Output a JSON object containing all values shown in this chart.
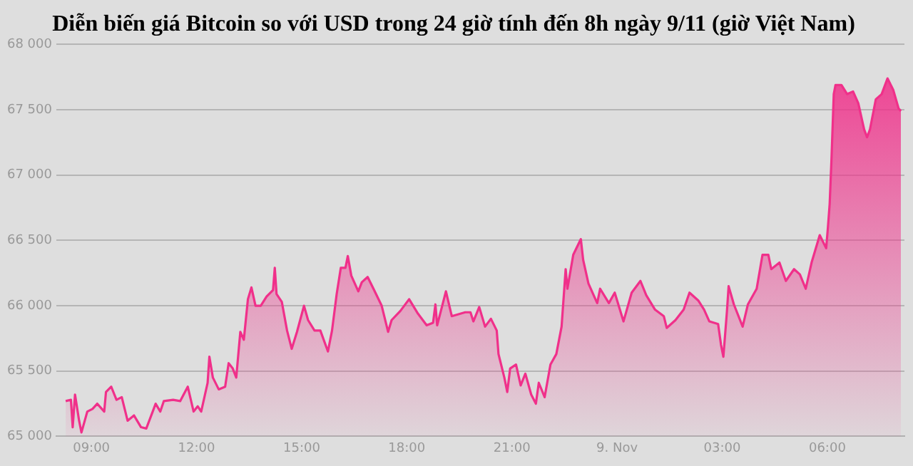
{
  "chart_data": {
    "type": "area",
    "title": "Diễn biến giá Bitcoin so với USD trong 24 giờ tính đến 8h ngày 9/11 (giờ Việt Nam)",
    "xlim": [
      "--11-08T08:00",
      "--11-09T08:12"
    ],
    "xticks": [
      {
        "value": "--11-08T09:00",
        "label": "09:00"
      },
      {
        "value": "--11-08T12:00",
        "label": "12:00"
      },
      {
        "value": "--11-08T15:00",
        "label": "15:00"
      },
      {
        "value": "--11-08T18:00",
        "label": "18:00"
      },
      {
        "value": "--11-08T21:00",
        "label": "21:00"
      },
      {
        "value": "--11-09T00:00",
        "label": "9. Nov"
      },
      {
        "value": "--11-09T03:00",
        "label": "03:00"
      },
      {
        "value": "--11-09T06:00",
        "label": "06:00"
      }
    ],
    "ylim": [
      65000,
      68000
    ],
    "yticks": [
      {
        "value": 65000,
        "label": "65 000"
      },
      {
        "value": 65500,
        "label": "65 500"
      },
      {
        "value": 66000,
        "label": "66 000"
      },
      {
        "value": 66500,
        "label": "66 500"
      },
      {
        "value": 67000,
        "label": "67 000"
      },
      {
        "value": 67500,
        "label": "67 500"
      },
      {
        "value": 68000,
        "label": "68 000"
      }
    ],
    "grid": "y",
    "legend": false,
    "marker": "none",
    "line_style": "solid",
    "series": [
      {
        "color": "#f0308a",
        "x": [
          "--11-08T08:16",
          "--11-08T08:25",
          "--11-08T08:28",
          "--11-08T08:32",
          "--11-08T08:39",
          "--11-08T08:43",
          "--11-08T08:53",
          "--11-08T09:02",
          "--11-08T09:10",
          "--11-08T09:22",
          "--11-08T09:25",
          "--11-08T09:34",
          "--11-08T09:43",
          "--11-08T09:52",
          "--11-08T10:02",
          "--11-08T10:13",
          "--11-08T10:25",
          "--11-08T10:34",
          "--11-08T10:45",
          "--11-08T10:50",
          "--11-08T10:58",
          "--11-08T11:04",
          "--11-08T11:20",
          "--11-08T11:32",
          "--11-08T11:45",
          "--11-08T11:55",
          "--11-08T12:02",
          "--11-08T12:08",
          "--11-08T12:19",
          "--11-08T12:22",
          "--11-08T12:28",
          "--11-08T12:38",
          "--11-08T12:49",
          "--11-08T12:55",
          "--11-08T13:02",
          "--11-08T13:08",
          "--11-08T13:15",
          "--11-08T13:21",
          "--11-08T13:28",
          "--11-08T13:34",
          "--11-08T13:41",
          "--11-08T13:50",
          "--11-08T14:00",
          "--11-08T14:11",
          "--11-08T14:14",
          "--11-08T14:17",
          "--11-08T14:26",
          "--11-08T14:35",
          "--11-08T14:43",
          "--11-08T14:52",
          "--11-08T15:04",
          "--11-08T15:11",
          "--11-08T15:22",
          "--11-08T15:32",
          "--11-08T15:45",
          "--11-08T15:52",
          "--11-08T16:00",
          "--11-08T16:07",
          "--11-08T16:15",
          "--11-08T16:19",
          "--11-08T16:25",
          "--11-08T16:37",
          "--11-08T16:43",
          "--11-08T16:53",
          "--11-08T17:04",
          "--11-08T17:17",
          "--11-08T17:28",
          "--11-08T17:34",
          "--11-08T17:49",
          "--11-08T18:04",
          "--11-08T18:19",
          "--11-08T18:34",
          "--11-08T18:45",
          "--11-08T18:49",
          "--11-08T18:52",
          "--11-08T19:07",
          "--11-08T19:17",
          "--11-08T19:40",
          "--11-08T19:49",
          "--11-08T19:54",
          "--11-08T20:04",
          "--11-08T20:14",
          "--11-08T20:24",
          "--11-08T20:34",
          "--11-08T20:37",
          "--11-08T20:47",
          "--11-08T20:52",
          "--11-08T20:57",
          "--11-08T21:07",
          "--11-08T21:15",
          "--11-08T21:23",
          "--11-08T21:33",
          "--11-08T21:41",
          "--11-08T21:46",
          "--11-08T21:56",
          "--11-08T22:06",
          "--11-08T22:16",
          "--11-08T22:25",
          "--11-08T22:32",
          "--11-08T22:35",
          "--11-08T22:45",
          "--11-08T22:58",
          "--11-08T23:02",
          "--11-08T23:11",
          "--11-08T23:22",
          "--11-08T23:26",
          "--11-08T23:31",
          "--11-08T23:46",
          "--11-08T23:56",
          "--11-09T00:11",
          "--11-09T00:25",
          "--11-09T00:40",
          "--11-09T00:50",
          "--11-09T01:05",
          "--11-09T01:20",
          "--11-09T01:25",
          "--11-09T01:40",
          "--11-09T01:54",
          "--11-09T02:04",
          "--11-09T02:19",
          "--11-09T02:29",
          "--11-09T02:38",
          "--11-09T02:53",
          "--11-09T02:58",
          "--11-09T03:02",
          "--11-09T03:08",
          "--11-09T03:11",
          "--11-09T03:20",
          "--11-09T03:35",
          "--11-09T03:44",
          "--11-09T03:59",
          "--11-09T04:09",
          "--11-09T04:19",
          "--11-09T04:24",
          "--11-09T04:38",
          "--11-09T04:49",
          "--11-09T05:03",
          "--11-09T05:13",
          "--11-09T05:23",
          "--11-09T05:33",
          "--11-09T05:47",
          "--11-09T05:58",
          "--11-09T06:01",
          "--11-09T06:04",
          "--11-09T06:07",
          "--11-09T06:11",
          "--11-09T06:14",
          "--11-09T06:24",
          "--11-09T06:34",
          "--11-09T06:44",
          "--11-09T06:53",
          "--11-09T07:03",
          "--11-09T07:08",
          "--11-09T07:13",
          "--11-09T07:23",
          "--11-09T07:33",
          "--11-09T07:43",
          "--11-09T07:53",
          "--11-09T08:02",
          "--11-09T08:06"
        ],
        "values": [
          65270,
          65280,
          65070,
          65320,
          65120,
          65030,
          65190,
          65210,
          65250,
          65190,
          65340,
          65380,
          65280,
          65300,
          65120,
          65160,
          65070,
          65060,
          65190,
          65250,
          65190,
          65270,
          65280,
          65270,
          65380,
          65190,
          65230,
          65190,
          65410,
          65610,
          65450,
          65360,
          65380,
          65560,
          65520,
          65450,
          65800,
          65740,
          66050,
          66140,
          66000,
          66000,
          66070,
          66120,
          66290,
          66090,
          66030,
          65810,
          65670,
          65800,
          66000,
          65890,
          65810,
          65810,
          65650,
          65810,
          66090,
          66290,
          66290,
          66380,
          66230,
          66110,
          66180,
          66220,
          66120,
          66000,
          65800,
          65890,
          65960,
          66050,
          65940,
          65850,
          65870,
          66010,
          65850,
          66110,
          65920,
          65950,
          65950,
          65880,
          65990,
          65840,
          65900,
          65810,
          65630,
          65450,
          65340,
          65520,
          65550,
          65390,
          65480,
          65320,
          65250,
          65410,
          65300,
          65550,
          65630,
          65840,
          66280,
          66130,
          66390,
          66510,
          66350,
          66170,
          66060,
          66020,
          66130,
          66020,
          66100,
          65880,
          66100,
          66190,
          66080,
          65970,
          65920,
          65830,
          65890,
          65970,
          66100,
          66040,
          65970,
          65880,
          65860,
          65700,
          65610,
          65950,
          66150,
          66010,
          65840,
          66010,
          66130,
          66390,
          66390,
          66280,
          66330,
          66190,
          66280,
          66240,
          66130,
          66330,
          66540,
          66440,
          66600,
          66780,
          67110,
          67620,
          67690,
          67690,
          67620,
          67640,
          67550,
          67350,
          67290,
          67350,
          67580,
          67620,
          67740,
          67650,
          67510,
          67490
        ]
      }
    ]
  }
}
